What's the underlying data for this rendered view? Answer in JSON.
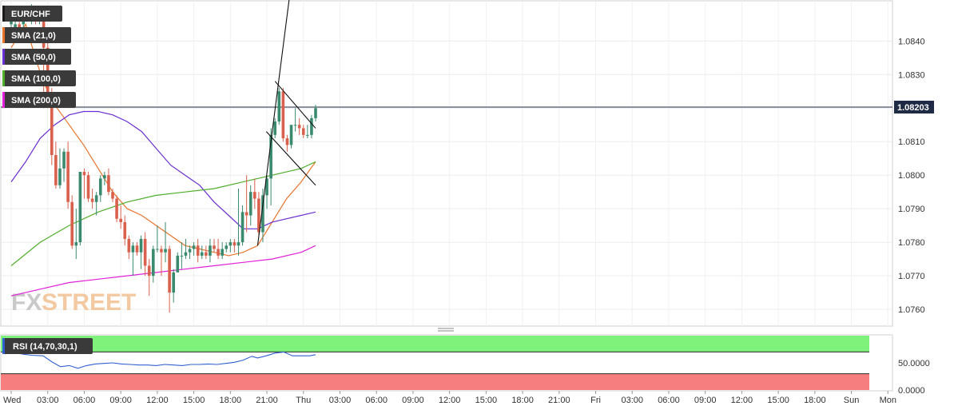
{
  "chart_data": [
    {
      "type": "candlestick",
      "symbol": "EUR/CHF",
      "ylim": [
        1.0755,
        1.0852
      ],
      "y_ticks": [
        "1.0840",
        "1.0830",
        "1.0820",
        "1.0810",
        "1.0800",
        "1.0790",
        "1.0780",
        "1.0770",
        "1.0760"
      ],
      "x_ticks": [
        "Wed",
        "03:00",
        "06:00",
        "09:00",
        "12:00",
        "15:00",
        "18:00",
        "21:00",
        "Thu",
        "03:00",
        "06:00",
        "09:00",
        "12:00",
        "15:00",
        "18:00",
        "21:00",
        "Fri",
        "03:00",
        "06:00",
        "09:00",
        "12:00",
        "15:00",
        "18:00",
        "Sun",
        "Mon"
      ],
      "last_price": 1.08203,
      "last_price_label": "1.08203",
      "up_color": "#3a8a6e",
      "down_color": "#d9604c",
      "candles": [
        [
          1.0845,
          1.0849,
          1.0846,
          1.0841
        ],
        [
          1.0842,
          1.0846,
          1.0845,
          1.0841
        ],
        [
          1.0845,
          1.0848,
          1.0844,
          1.0841
        ],
        [
          1.0845,
          1.0847,
          1.0846,
          1.0843
        ],
        [
          1.0847,
          1.0849,
          1.085,
          1.0847
        ],
        [
          1.0848,
          1.0851,
          1.0849,
          1.0845
        ],
        [
          1.0849,
          1.085,
          1.0846,
          1.0845
        ],
        [
          1.0847,
          1.0848,
          1.0848,
          1.0845
        ],
        [
          1.0848,
          1.085,
          1.0838,
          1.082
        ],
        [
          1.0838,
          1.084,
          1.0823,
          1.082
        ],
        [
          1.0823,
          1.0826,
          1.0806,
          1.0803
        ],
        [
          1.0806,
          1.081,
          1.0797,
          1.0796
        ],
        [
          1.0797,
          1.0808,
          1.0802,
          1.0796
        ],
        [
          1.0802,
          1.0808,
          1.0807,
          1.0798
        ],
        [
          1.0807,
          1.081,
          1.0792,
          1.079
        ],
        [
          1.0792,
          1.0794,
          1.0779,
          1.0778
        ],
        [
          1.0779,
          1.079,
          1.078,
          1.0775
        ],
        [
          1.078,
          1.0801,
          1.0801,
          1.0779
        ],
        [
          1.0801,
          1.0802,
          1.08,
          1.0793
        ],
        [
          1.08,
          1.0801,
          1.0793,
          1.0792
        ],
        [
          1.0793,
          1.0796,
          1.0792,
          1.079
        ],
        [
          1.0792,
          1.0795,
          1.0794,
          1.0788
        ],
        [
          1.0794,
          1.08,
          1.0799,
          1.0792
        ],
        [
          1.0799,
          1.0801,
          1.08,
          1.0797
        ],
        [
          1.08,
          1.0802,
          1.0795,
          1.0794
        ],
        [
          1.0795,
          1.0796,
          1.0793,
          1.0792
        ],
        [
          1.0793,
          1.0794,
          1.0787,
          1.0786
        ],
        [
          1.0787,
          1.0791,
          1.0786,
          1.0784
        ],
        [
          1.0786,
          1.0788,
          1.0781,
          1.0779
        ],
        [
          1.0781,
          1.0782,
          1.0777,
          1.0775
        ],
        [
          1.0777,
          1.078,
          1.0779,
          1.077
        ],
        [
          1.0779,
          1.078,
          1.0777,
          1.0776
        ],
        [
          1.0777,
          1.0782,
          1.0781,
          1.0772
        ],
        [
          1.0781,
          1.0783,
          1.0773,
          1.077
        ],
        [
          1.0773,
          1.0775,
          1.077,
          1.0764
        ],
        [
          1.077,
          1.0779,
          1.0778,
          1.0768
        ],
        [
          1.0778,
          1.0785,
          1.0778,
          1.0777
        ],
        [
          1.0778,
          1.0779,
          1.0777,
          1.077
        ],
        [
          1.0777,
          1.0786,
          1.0778,
          1.0774
        ],
        [
          1.0778,
          1.0779,
          1.0765,
          1.0759
        ],
        [
          1.0765,
          1.0772,
          1.0771,
          1.0762
        ],
        [
          1.0771,
          1.0777,
          1.0776,
          1.0771
        ],
        [
          1.0776,
          1.078,
          1.0776,
          1.0772
        ],
        [
          1.0776,
          1.0781,
          1.0777,
          1.0775
        ],
        [
          1.0777,
          1.0779,
          1.0778,
          1.0775
        ],
        [
          1.0778,
          1.078,
          1.0779,
          1.0776
        ],
        [
          1.0779,
          1.0781,
          1.0776,
          1.0774
        ],
        [
          1.0776,
          1.0779,
          1.0777,
          1.0775
        ],
        [
          1.0777,
          1.0779,
          1.0776,
          1.0775
        ],
        [
          1.0776,
          1.0781,
          1.0779,
          1.0774
        ],
        [
          1.0779,
          1.0781,
          1.0778,
          1.0777
        ],
        [
          1.0778,
          1.0781,
          1.0776,
          1.0775
        ],
        [
          1.0776,
          1.078,
          1.0778,
          1.0775
        ],
        [
          1.0778,
          1.078,
          1.0779,
          1.0777
        ],
        [
          1.0779,
          1.0781,
          1.078,
          1.0777
        ],
        [
          1.078,
          1.0781,
          1.0779,
          1.0777
        ],
        [
          1.0779,
          1.0796,
          1.078,
          1.0776
        ],
        [
          1.078,
          1.0791,
          1.0789,
          1.0779
        ],
        [
          1.0789,
          1.08,
          1.0788,
          1.0783
        ],
        [
          1.0788,
          1.0797,
          1.0795,
          1.0785
        ],
        [
          1.0795,
          1.0799,
          1.0793,
          1.079
        ],
        [
          1.0793,
          1.0795,
          1.0783,
          1.0782
        ],
        [
          1.0783,
          1.0796,
          1.0794,
          1.078
        ],
        [
          1.0794,
          1.08,
          1.0799,
          1.079
        ],
        [
          1.0799,
          1.0814,
          1.0812,
          1.0791
        ],
        [
          1.0812,
          1.0817,
          1.0816,
          1.0811
        ],
        [
          1.0816,
          1.0826,
          1.0825,
          1.0815
        ],
        [
          1.0825,
          1.0826,
          1.0811,
          1.081
        ],
        [
          1.0811,
          1.0812,
          1.0809,
          1.0807
        ],
        [
          1.0809,
          1.0815,
          1.0815,
          1.0808
        ],
        [
          1.0815,
          1.082,
          1.0815,
          1.0813
        ],
        [
          1.0815,
          1.0817,
          1.0814,
          1.0812
        ],
        [
          1.0814,
          1.0815,
          1.0812,
          1.0811
        ],
        [
          1.0812,
          1.0815,
          1.0812,
          1.0811
        ],
        [
          1.0812,
          1.0818,
          1.0817,
          1.0811
        ],
        [
          1.0817,
          1.0821,
          1.082,
          1.0816
        ]
      ],
      "indicators": [
        {
          "name": "SMA (21,0)",
          "color": "#e8742c",
          "values": [
            [
              0,
              1.0838
            ],
            [
              10,
              1.0845
            ],
            [
              16,
              1.0836
            ],
            [
              22,
              1.0828
            ],
            [
              30,
              1.0821
            ],
            [
              40,
              1.0815
            ],
            [
              50,
              1.0809
            ],
            [
              60,
              1.0802
            ],
            [
              70,
              1.0795
            ],
            [
              80,
              1.079
            ],
            [
              90,
              1.0788
            ],
            [
              100,
              1.0785
            ],
            [
              110,
              1.0782
            ],
            [
              120,
              1.0779
            ],
            [
              130,
              1.0778
            ],
            [
              140,
              1.0777
            ],
            [
              150,
              1.0776
            ],
            [
              160,
              1.0777
            ],
            [
              170,
              1.0779
            ],
            [
              180,
              1.0786
            ],
            [
              190,
              1.0793
            ],
            [
              200,
              1.0798
            ],
            [
              210,
              1.0804
            ]
          ]
        },
        {
          "name": "SMA (50,0)",
          "color": "#6a2fd0",
          "values": [
            [
              0,
              1.0798
            ],
            [
              10,
              1.0804
            ],
            [
              20,
              1.0811
            ],
            [
              30,
              1.0815
            ],
            [
              40,
              1.0818
            ],
            [
              50,
              1.0819
            ],
            [
              60,
              1.0819
            ],
            [
              70,
              1.0818
            ],
            [
              80,
              1.0816
            ],
            [
              90,
              1.0813
            ],
            [
              100,
              1.0808
            ],
            [
              110,
              1.0803
            ],
            [
              120,
              1.08
            ],
            [
              130,
              1.0797
            ],
            [
              140,
              1.0792
            ],
            [
              150,
              1.0788
            ],
            [
              160,
              1.0784
            ],
            [
              170,
              1.0784
            ],
            [
              180,
              1.0786
            ],
            [
              190,
              1.0787
            ],
            [
              200,
              1.0788
            ],
            [
              210,
              1.0789
            ]
          ]
        },
        {
          "name": "SMA (100,0)",
          "color": "#4fae2a",
          "values": [
            [
              0,
              1.0773
            ],
            [
              20,
              1.078
            ],
            [
              40,
              1.0785
            ],
            [
              60,
              1.0789
            ],
            [
              80,
              1.0792
            ],
            [
              100,
              1.0794
            ],
            [
              120,
              1.0795
            ],
            [
              140,
              1.0796
            ],
            [
              160,
              1.0798
            ],
            [
              180,
              1.08
            ],
            [
              200,
              1.0802
            ],
            [
              210,
              1.0804
            ]
          ]
        },
        {
          "name": "SMA (200,0)",
          "color": "#e020d8",
          "values": [
            [
              0,
              1.0764
            ],
            [
              20,
              1.0766
            ],
            [
              40,
              1.0768
            ],
            [
              60,
              1.0769
            ],
            [
              80,
              1.077
            ],
            [
              100,
              1.0771
            ],
            [
              120,
              1.0772
            ],
            [
              140,
              1.0773
            ],
            [
              160,
              1.0774
            ],
            [
              180,
              1.0775
            ],
            [
              200,
              1.0777
            ],
            [
              210,
              1.0779
            ]
          ]
        }
      ],
      "trendlines": [
        [
          [
            170,
            1.0779
          ],
          [
            194,
            1.086
          ]
        ],
        [
          [
            176,
            1.0813
          ],
          [
            210,
            1.0797
          ]
        ],
        [
          [
            182,
            1.0828
          ],
          [
            210,
            1.0814
          ]
        ]
      ],
      "hline": 1.08203
    },
    {
      "type": "line",
      "label": "RSI (14,70,30,1)",
      "ylim": [
        0,
        100
      ],
      "y_ticks": [
        "50.0000",
        "0.0000"
      ],
      "overbought": 70,
      "oversold": 30,
      "line_color": "#3060d0",
      "values": [
        [
          0,
          70
        ],
        [
          8,
          66
        ],
        [
          14,
          64
        ],
        [
          22,
          63
        ],
        [
          28,
          52
        ],
        [
          34,
          43
        ],
        [
          40,
          45
        ],
        [
          46,
          40
        ],
        [
          52,
          45
        ],
        [
          58,
          48
        ],
        [
          64,
          49
        ],
        [
          70,
          50
        ],
        [
          76,
          48
        ],
        [
          82,
          47
        ],
        [
          88,
          46
        ],
        [
          94,
          46
        ],
        [
          100,
          45
        ],
        [
          106,
          47
        ],
        [
          112,
          46
        ],
        [
          118,
          45
        ],
        [
          124,
          47
        ],
        [
          130,
          47
        ],
        [
          136,
          48
        ],
        [
          142,
          47
        ],
        [
          148,
          49
        ],
        [
          154,
          51
        ],
        [
          160,
          55
        ],
        [
          166,
          62
        ],
        [
          170,
          59
        ],
        [
          176,
          63
        ],
        [
          182,
          68
        ],
        [
          188,
          70
        ],
        [
          194,
          63
        ],
        [
          200,
          63
        ],
        [
          206,
          63
        ],
        [
          210,
          65
        ]
      ]
    }
  ],
  "legend": {
    "symbol": "EUR/CHF",
    "items": [
      {
        "label": "SMA (21,0)",
        "color": "#e8742c"
      },
      {
        "label": "SMA (50,0)",
        "color": "#6a2fd0"
      },
      {
        "label": "SMA (100,0)",
        "color": "#4fae2a"
      },
      {
        "label": "SMA (200,0)",
        "color": "#e020d8"
      }
    ]
  },
  "watermark": {
    "text1": "FX",
    "text2": "STREET"
  }
}
